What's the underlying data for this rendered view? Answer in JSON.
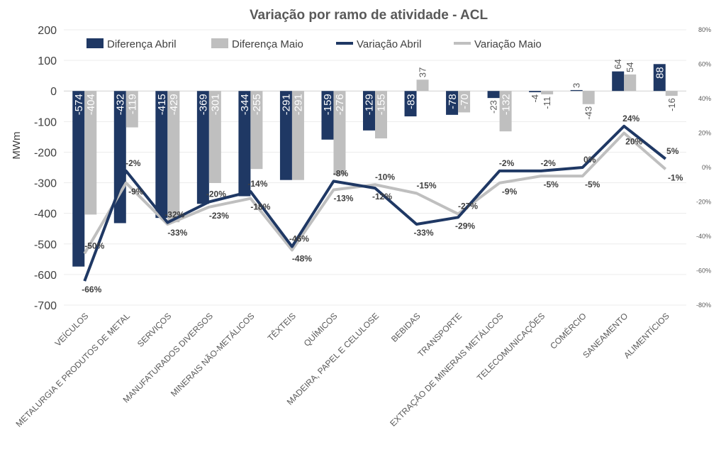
{
  "chart_data": {
    "type": "bar",
    "title": "Variação por ramo de atividade - ACL",
    "ylabel": "MWm",
    "ylim": [
      -700,
      200
    ],
    "yticks": [
      200,
      100,
      0,
      -100,
      -200,
      -300,
      -400,
      -500,
      -600,
      -700
    ],
    "y2lim": [
      -0.8,
      0.8
    ],
    "y2ticks": [
      "80%",
      "60%",
      "40%",
      "20%",
      "0%",
      "-20%",
      "-40%",
      "-60%",
      "-80%"
    ],
    "legend_position": "top",
    "categories": [
      "VEÍCULOS",
      "METALURGIA E PRODUTOS DE METAL",
      "SERVIÇOS",
      "MANUFATURADOS DIVERSOS",
      "MINERAIS NÃO-METÁLICOS",
      "TÊXTEIS",
      "QUÍMICOS",
      "MADEIRA, PAPEL E CELULOSE",
      "BEBIDAS",
      "TRANSPORTE",
      "EXTRAÇÃO DE MINERAIS METÁLICOS",
      "TELECOMUNICAÇÕES",
      "COMÉRCIO",
      "SANEAMENTO",
      "ALIMENTÍCIOS"
    ],
    "series": [
      {
        "name": "Diferença Abril",
        "kind": "bar",
        "color": "#1f3864",
        "values": [
          -574,
          -432,
          -415,
          -369,
          -344,
          -291,
          -159,
          -129,
          -83,
          -78,
          -23,
          -4,
          3,
          64,
          88
        ],
        "labels": [
          "-574",
          "-432",
          "-415",
          "-369",
          "-344",
          "-291",
          "-159",
          "-129",
          "-83",
          "-78",
          "-23",
          "-4",
          "3",
          "64",
          "88"
        ]
      },
      {
        "name": "Diferença Maio",
        "kind": "bar",
        "color": "#bfbfbf",
        "values": [
          -404,
          -119,
          -429,
          -301,
          -255,
          -291,
          -276,
          -155,
          37,
          -70,
          -132,
          -11,
          -43,
          54,
          -16
        ],
        "labels": [
          "-404",
          "-119",
          "-429",
          "-301",
          "-255",
          "-291",
          "-276",
          "-155",
          "37",
          "-70",
          "-132",
          "-11",
          "-43",
          "54",
          "-16"
        ]
      },
      {
        "name": "Variação Abril",
        "kind": "line",
        "axis": "secondary",
        "color": "#1f3864",
        "values": [
          -0.66,
          -0.02,
          -0.32,
          -0.2,
          -0.14,
          -0.46,
          -0.08,
          -0.12,
          -0.33,
          -0.29,
          -0.02,
          -0.02,
          0.0,
          0.24,
          0.05
        ],
        "labels": [
          "-66%",
          "-2%",
          "-32%",
          "-20%",
          "-14%",
          "-46%",
          "-8%",
          "-12%",
          "-33%",
          "-29%",
          "-2%",
          "-2%",
          "0%",
          "24%",
          "5%"
        ]
      },
      {
        "name": "Variação Maio",
        "kind": "line",
        "axis": "secondary",
        "color": "#bfbfbf",
        "values": [
          -0.5,
          -0.09,
          -0.33,
          -0.23,
          -0.18,
          -0.48,
          -0.13,
          -0.1,
          -0.15,
          -0.27,
          -0.09,
          -0.05,
          -0.05,
          0.2,
          -0.01
        ],
        "labels": [
          "-50%",
          "-9%",
          "-33%",
          "-23%",
          "-18%",
          "-48%",
          "-13%",
          "-10%",
          "-15%",
          "-27%",
          "-9%",
          "-5%",
          "-5%",
          "20%",
          "-1%"
        ]
      }
    ]
  }
}
